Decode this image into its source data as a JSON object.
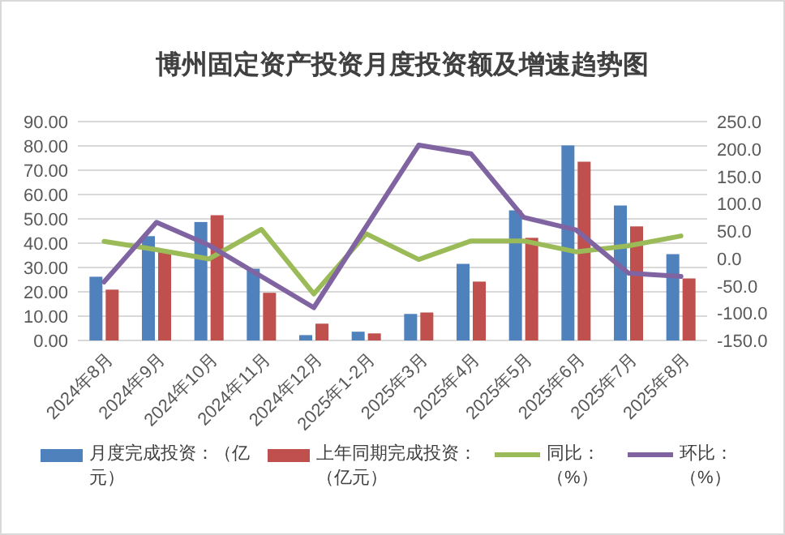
{
  "chart_data": {
    "type": "bar",
    "title": "博州固定资产投资月度投资额及增速趋势图",
    "categories": [
      "2024年8月",
      "2024年9月",
      "2024年10月",
      "2024年11月",
      "2024年12月",
      "2025年1-2月",
      "2025年3月",
      "2025年4月",
      "2025年5月",
      "2025年6月",
      "2025年7月",
      "2025年8月"
    ],
    "series": [
      {
        "name": "月度完成投资：（亿元）",
        "color": "#4f81bd",
        "values": [
          26.2,
          42.9,
          48.7,
          29.5,
          2.2,
          3.6,
          10.9,
          31.5,
          53.5,
          80.2,
          55.5,
          35.5
        ]
      },
      {
        "name": "上年同期完成投资：（亿元）",
        "color": "#c0504d",
        "values": [
          20.9,
          37.3,
          51.5,
          19.6,
          6.9,
          2.9,
          11.5,
          24.2,
          42.2,
          73.5,
          46.9,
          25.5
        ]
      },
      {
        "name": "同比：（%）",
        "type": "line",
        "axis": "y2",
        "color": "#9bbb59",
        "values": [
          31,
          16,
          -1,
          53,
          -65,
          45,
          -2,
          32,
          32,
          12,
          23,
          41
        ]
      },
      {
        "name": "环比：（%）",
        "type": "line",
        "axis": "y2",
        "color": "#8064a2",
        "values": [
          -43,
          66,
          24,
          -33,
          -90,
          null,
          207,
          191,
          75,
          52,
          -27,
          -33
        ]
      }
    ],
    "ylim": [
      0,
      90
    ],
    "yticks": [
      {
        "value": 0,
        "label": "0.00"
      },
      {
        "value": 10,
        "label": "10.00"
      },
      {
        "value": 20,
        "label": "20.00"
      },
      {
        "value": 30,
        "label": "30.00"
      },
      {
        "value": 40,
        "label": "40.00"
      },
      {
        "value": 50,
        "label": "50.00"
      },
      {
        "value": 60,
        "label": "60.00"
      },
      {
        "value": 70,
        "label": "70.00"
      },
      {
        "value": 80,
        "label": "80.00"
      },
      {
        "value": 90,
        "label": "90.00"
      }
    ],
    "y2lim": [
      -150,
      250
    ],
    "y2ticks": [
      {
        "value": -150,
        "label": "-150.0"
      },
      {
        "value": -100,
        "label": "-100.0"
      },
      {
        "value": -50,
        "label": "-50.0"
      },
      {
        "value": 0,
        "label": "0.0"
      },
      {
        "value": 50,
        "label": "50.0"
      },
      {
        "value": 100,
        "label": "100.0"
      },
      {
        "value": 150,
        "label": "150.0"
      },
      {
        "value": 200,
        "label": "200.0"
      },
      {
        "value": 250,
        "label": "250.0"
      }
    ],
    "grid": "y",
    "legend": "bottom",
    "marker": "none",
    "line_style": "solid"
  }
}
